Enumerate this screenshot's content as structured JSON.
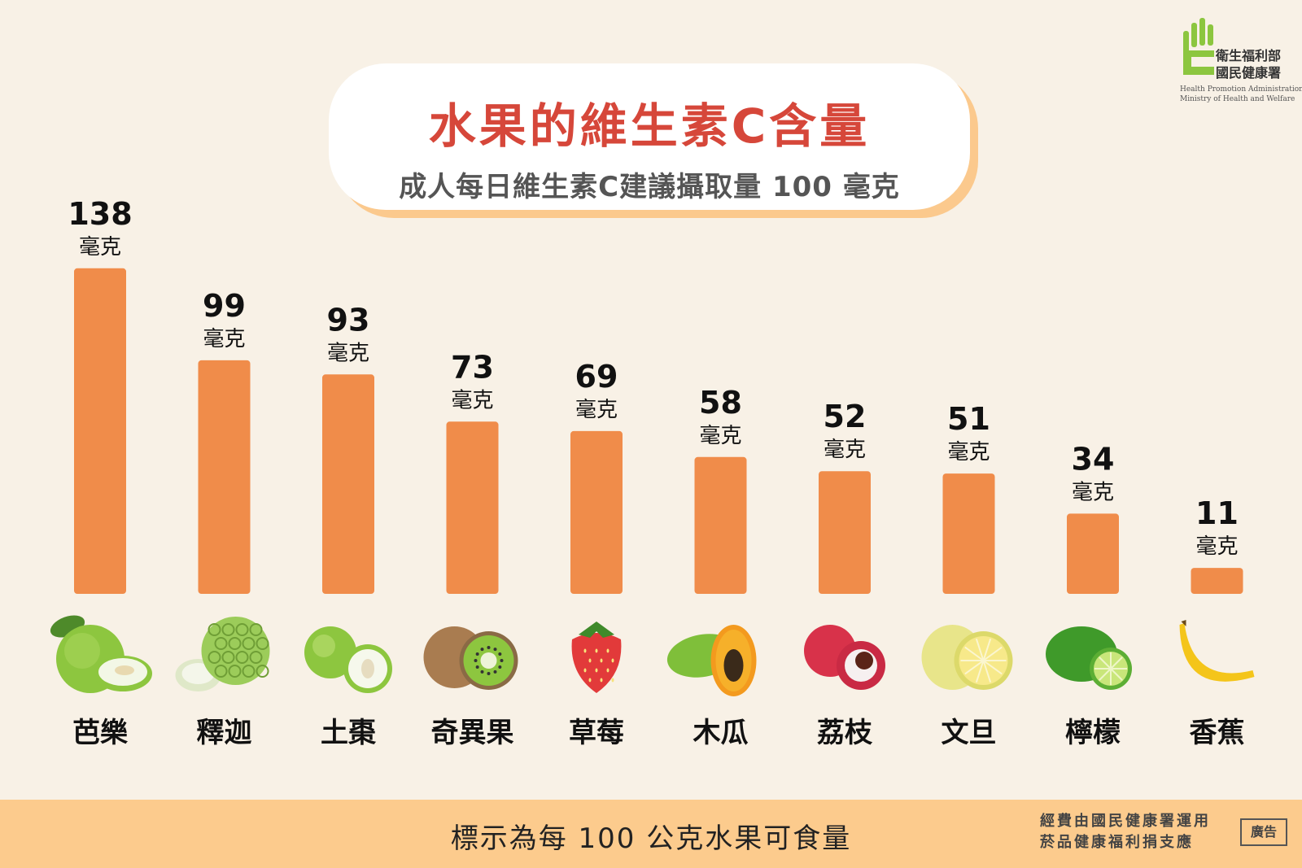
{
  "header": {
    "title": "水果的維生素C含量",
    "subtitle": "成人每日維生素C建議攝取量 100 毫克"
  },
  "logo": {
    "org_line1": "衛生福利部",
    "org_line2": "國民健康署",
    "org_en_line1": "Health Promotion Administration,",
    "org_en_line2": "Ministry of Health and Welfare",
    "icon": "hand-c-logo",
    "color": "#8cc63f"
  },
  "chart_data": {
    "type": "bar",
    "categories": [
      "芭樂",
      "釋迦",
      "土棗",
      "奇異果",
      "草莓",
      "木瓜",
      "荔枝",
      "文旦",
      "檸檬",
      "香蕉"
    ],
    "values": [
      138,
      99,
      93,
      73,
      69,
      58,
      52,
      51,
      34,
      11
    ],
    "unit": "毫克",
    "title": "水果的維生素C含量",
    "subtitle": "成人每日維生素C建議攝取量 100 毫克",
    "xlabel": "",
    "ylabel": "",
    "ylim": [
      0,
      140
    ],
    "grid": false,
    "bar_color": "#f08c4a",
    "icons": [
      "guava-icon",
      "custard-apple-icon",
      "jujube-icon",
      "kiwi-icon",
      "strawberry-icon",
      "papaya-icon",
      "lychee-icon",
      "pomelo-icon",
      "lime-icon",
      "banana-icon"
    ]
  },
  "footer": {
    "note": "標示為每 100 公克水果可食量",
    "sponsor_line1": "經費由國民健康署運用",
    "sponsor_line2": "菸品健康福利捐支應",
    "ad_label": "廣告"
  }
}
